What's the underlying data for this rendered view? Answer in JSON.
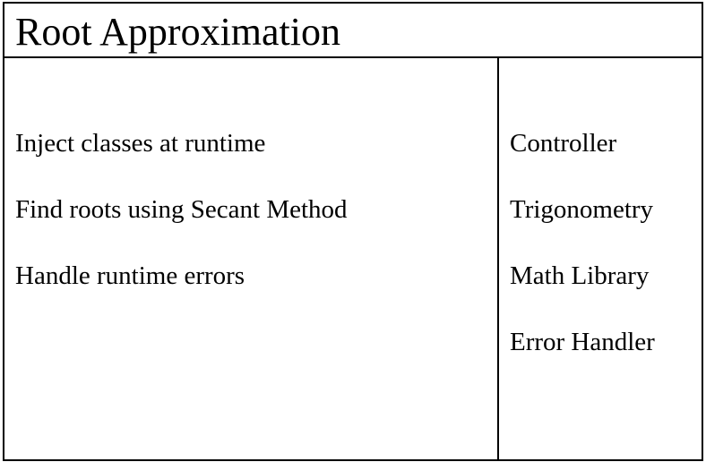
{
  "card": {
    "title": "Root Approximation",
    "responsibilities": [
      "Inject classes at runtime",
      "Find roots using Secant Method",
      "Handle runtime errors"
    ],
    "collaborators": [
      "Controller",
      "Trigonometry",
      "Math Library",
      "Error Handler"
    ]
  }
}
